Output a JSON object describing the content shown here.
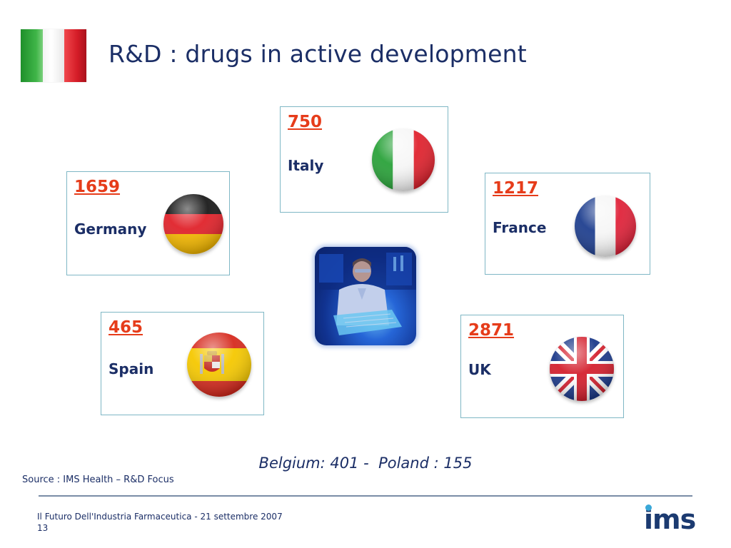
{
  "header": {
    "title": "R&D : drugs in active development",
    "flag_icon": "italy-flag-icon",
    "flag_colors": [
      "#1e8f2a",
      "#ffffff",
      "#d41c27"
    ]
  },
  "countries": {
    "italy": {
      "count": "750",
      "name": "Italy",
      "flag": "italy-flag-icon"
    },
    "germany": {
      "count": "1659",
      "name": "Germany",
      "flag": "germany-flag-icon"
    },
    "france": {
      "count": "1217",
      "name": "France",
      "flag": "france-flag-icon"
    },
    "spain": {
      "count": "465",
      "name": "Spain",
      "flag": "spain-flag-icon"
    },
    "uk": {
      "count": "2871",
      "name": "UK",
      "flag": "uk-flag-icon"
    }
  },
  "center_image": "laboratory-researcher-photo",
  "extra_note": "Belgium: 401 -  Poland : 155",
  "source": "Source : IMS Health – R&D Focus",
  "footer": {
    "event": "Il Futuro Dell'Industria Farmaceutica - 21 settembre 2007",
    "page_number": "13",
    "logo_text": "ims"
  },
  "colors": {
    "title": "#1b2e66",
    "count": "#e63c1a",
    "box_border": "#7fb7c5",
    "logo": "#1b3a70"
  }
}
